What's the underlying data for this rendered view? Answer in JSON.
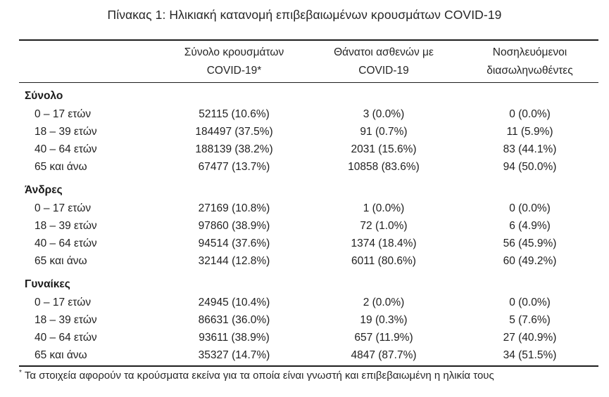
{
  "title": "Πίνακας 1: Ηλικιακή κατανομή επιβεβαιωμένων κρουσμάτων COVID-19",
  "table": {
    "columns": [
      {
        "line1": "Σύνολο κρουσμάτων",
        "line2": "COVID-19*"
      },
      {
        "line1": "Θάνατοι ασθενών με",
        "line2": "COVID-19"
      },
      {
        "line1": "Νοσηλευόμενοι",
        "line2": "διασωληνωθέντες"
      }
    ],
    "sections": [
      {
        "label": "Σύνολο",
        "rows": [
          {
            "age_group": "0 – 17 ετών",
            "cases": "52115 (10.6%)",
            "deaths": "3 (0.0%)",
            "intubated": "0 (0.0%)"
          },
          {
            "age_group": "18 – 39 ετών",
            "cases": "184497 (37.5%)",
            "deaths": "91 (0.7%)",
            "intubated": "11 (5.9%)"
          },
          {
            "age_group": "40 – 64 ετών",
            "cases": "188139 (38.2%)",
            "deaths": "2031 (15.6%)",
            "intubated": "83 (44.1%)"
          },
          {
            "age_group": "65 και άνω",
            "cases": "67477 (13.7%)",
            "deaths": "10858 (83.6%)",
            "intubated": "94 (50.0%)"
          }
        ]
      },
      {
        "label": "Άνδρες",
        "rows": [
          {
            "age_group": "0 – 17 ετών",
            "cases": "27169 (10.8%)",
            "deaths": "1 (0.0%)",
            "intubated": "0 (0.0%)"
          },
          {
            "age_group": "18 – 39 ετών",
            "cases": "97860 (38.9%)",
            "deaths": "72 (1.0%)",
            "intubated": "6 (4.9%)"
          },
          {
            "age_group": "40 – 64 ετών",
            "cases": "94514 (37.6%)",
            "deaths": "1374 (18.4%)",
            "intubated": "56 (45.9%)"
          },
          {
            "age_group": "65 και άνω",
            "cases": "32144 (12.8%)",
            "deaths": "6011 (80.6%)",
            "intubated": "60 (49.2%)"
          }
        ]
      },
      {
        "label": "Γυναίκες",
        "rows": [
          {
            "age_group": "0 – 17 ετών",
            "cases": "24945 (10.4%)",
            "deaths": "2 (0.0%)",
            "intubated": "0 (0.0%)"
          },
          {
            "age_group": "18 – 39 ετών",
            "cases": "86631 (36.0%)",
            "deaths": "19 (0.3%)",
            "intubated": "5 (7.6%)"
          },
          {
            "age_group": "40 – 64 ετών",
            "cases": "93611 (38.9%)",
            "deaths": "657 (11.9%)",
            "intubated": "27 (40.9%)"
          },
          {
            "age_group": "65 και άνω",
            "cases": "35327 (14.7%)",
            "deaths": "4847 (87.7%)",
            "intubated": "34 (51.5%)"
          }
        ]
      }
    ]
  },
  "footnote": {
    "marker": "*",
    "text": "Τα στοιχεία αφορούν τα κρούσματα εκείνα για τα οποία είναι γνωστή και επιβεβαιωμένη η ηλικία τους"
  },
  "colors": {
    "text": "#1f1f1f",
    "border": "#1d1d1d",
    "background": "#ffffff"
  }
}
